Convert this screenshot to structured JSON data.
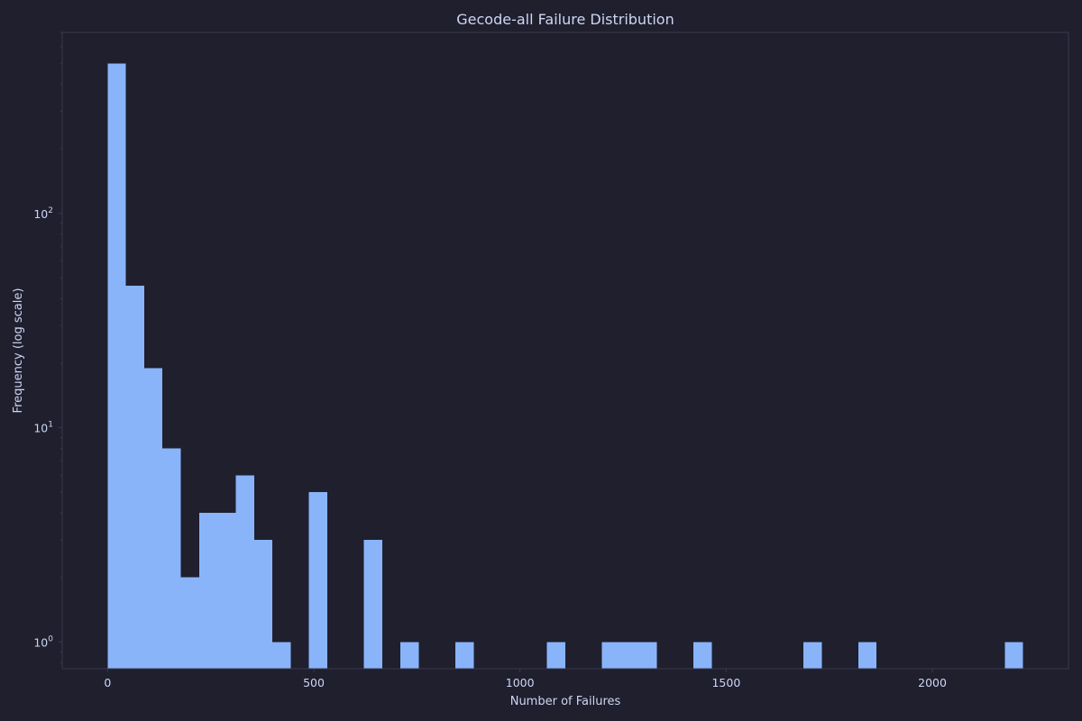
{
  "colors": {
    "background": "#1f1f2e",
    "plot_background": "#1f1f2e",
    "bar": "#89b4fa",
    "text": "#cdd6f4",
    "frame": "#3a3a4f"
  },
  "chart_data": {
    "type": "bar",
    "title": "Gecode-all Failure Distribution",
    "xlabel": "Number of Failures",
    "ylabel": "Frequency (log scale)",
    "y_scale": "log",
    "xlim": [
      -110,
      2330
    ],
    "ylim": [
      0.75,
      700
    ],
    "grid": false,
    "legend": "none",
    "x_ticks": [
      0,
      500,
      1000,
      1500,
      2000
    ],
    "x_tick_labels": [
      "0",
      "500",
      "1000",
      "1500",
      "2000"
    ],
    "y_ticks": [
      1,
      10,
      100
    ],
    "y_tick_labels": [
      {
        "base": "10",
        "exp": "0"
      },
      {
        "base": "10",
        "exp": "1"
      },
      {
        "base": "10",
        "exp": "2"
      }
    ],
    "bin_width": 44.4,
    "bins": [
      {
        "x": 0,
        "value": 500
      },
      {
        "x": 44.4,
        "value": 46
      },
      {
        "x": 88.8,
        "value": 19
      },
      {
        "x": 133.2,
        "value": 8
      },
      {
        "x": 177.6,
        "value": 2
      },
      {
        "x": 222,
        "value": 4
      },
      {
        "x": 266.4,
        "value": 4
      },
      {
        "x": 310.8,
        "value": 6
      },
      {
        "x": 355.2,
        "value": 3
      },
      {
        "x": 399.6,
        "value": 1
      },
      {
        "x": 488.4,
        "value": 5
      },
      {
        "x": 621.6,
        "value": 3
      },
      {
        "x": 710.4,
        "value": 1
      },
      {
        "x": 843.6,
        "value": 1
      },
      {
        "x": 1065.6,
        "value": 1
      },
      {
        "x": 1198.8,
        "value": 1
      },
      {
        "x": 1243.2,
        "value": 1
      },
      {
        "x": 1287.6,
        "value": 1
      },
      {
        "x": 1420.8,
        "value": 1
      },
      {
        "x": 1687.2,
        "value": 1
      },
      {
        "x": 1820.4,
        "value": 1
      },
      {
        "x": 2175.6,
        "value": 1
      }
    ]
  }
}
